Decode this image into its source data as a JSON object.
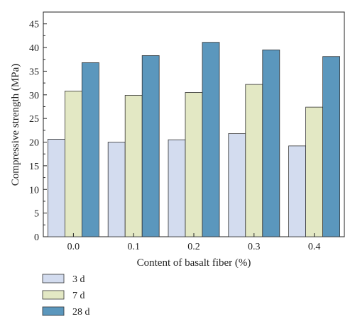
{
  "chart_data": {
    "type": "bar",
    "xlabel": "Content of basalt fiber (%)",
    "ylabel": "Compressive strength (MPa)",
    "categories": [
      "0.0",
      "0.1",
      "0.2",
      "0.3",
      "0.4"
    ],
    "ylim": [
      0,
      47.5
    ],
    "yticks": [
      0,
      5,
      10,
      15,
      20,
      25,
      30,
      35,
      40,
      45
    ],
    "grid": false,
    "legend_position": "bottom-left",
    "series": [
      {
        "name": "3 d",
        "color": "#d3dcef",
        "values": [
          20.6,
          20.0,
          20.5,
          21.8,
          19.2
        ]
      },
      {
        "name": "7 d",
        "color": "#e3e8c4",
        "values": [
          30.8,
          29.9,
          30.5,
          32.2,
          27.4
        ]
      },
      {
        "name": "28 d",
        "color": "#5b97bd",
        "values": [
          36.8,
          38.3,
          41.1,
          39.5,
          38.1
        ]
      }
    ]
  }
}
